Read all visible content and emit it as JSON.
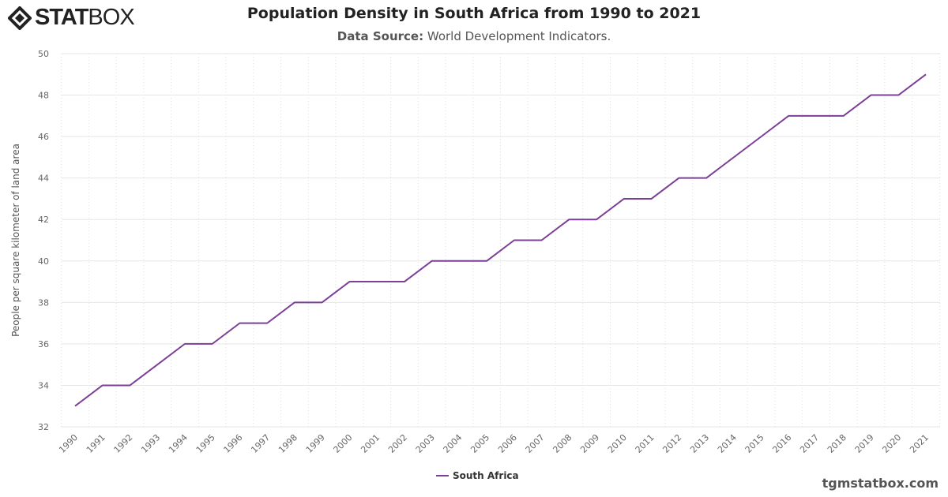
{
  "logo": {
    "text": "STATBOX",
    "text_bold": "STAT",
    "text_light": "BOX"
  },
  "title": "Population Density in South Africa from 1990 to 2021",
  "subtitle": {
    "label": "Data Source:",
    "value": "World Development Indicators."
  },
  "footer": "tgmstatbox.com",
  "chart_data": {
    "type": "line",
    "title": "Population Density in South Africa from 1990 to 2021",
    "ylabel": "People per square kilometer of land area",
    "xlabel": "",
    "ylim": [
      32,
      50
    ],
    "yticks": [
      32,
      34,
      36,
      38,
      40,
      42,
      44,
      46,
      48,
      50
    ],
    "grid": true,
    "legend": "bottom-center",
    "x": [
      "1990",
      "1991",
      "1992",
      "1993",
      "1994",
      "1995",
      "1996",
      "1997",
      "1998",
      "1999",
      "2000",
      "2001",
      "2002",
      "2003",
      "2004",
      "2005",
      "2006",
      "2007",
      "2008",
      "2009",
      "2010",
      "2011",
      "2012",
      "2013",
      "2014",
      "2015",
      "2016",
      "2017",
      "2018",
      "2019",
      "2020",
      "2021"
    ],
    "series": [
      {
        "name": "South Africa",
        "color": "#7b3f96",
        "values": [
          33,
          34,
          34,
          35,
          36,
          36,
          37,
          37,
          38,
          38,
          39,
          39,
          39,
          40,
          40,
          40,
          41,
          41,
          42,
          42,
          43,
          43,
          44,
          44,
          45,
          46,
          47,
          47,
          47,
          48,
          48,
          49
        ]
      }
    ]
  }
}
